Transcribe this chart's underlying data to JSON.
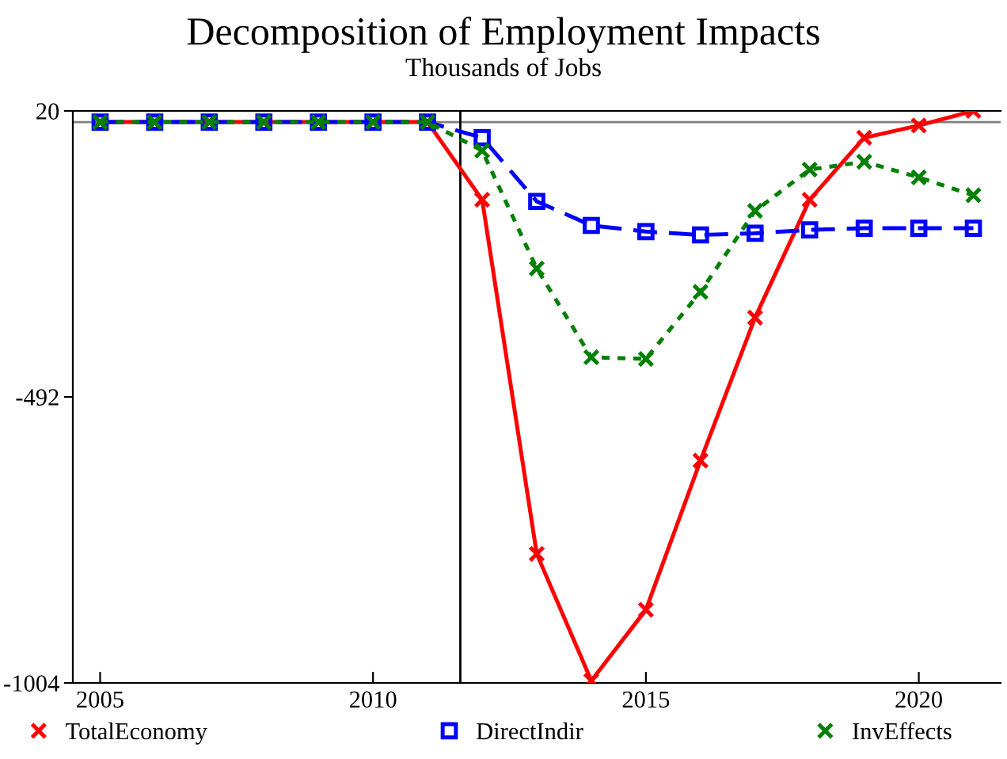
{
  "chart_data": {
    "type": "line",
    "title": "Decomposition of Employment Impacts",
    "subtitle": "Thousands of Jobs",
    "x": [
      2005,
      2006,
      2007,
      2008,
      2009,
      2010,
      2011,
      2012,
      2013,
      2014,
      2015,
      2016,
      2017,
      2018,
      2019,
      2020,
      2021
    ],
    "series": [
      {
        "name": "TotalEconomy",
        "color": "#ff0000",
        "marker": "cross",
        "line_style": "solid",
        "values": [
          0,
          0,
          0,
          0,
          0,
          0,
          0,
          -139,
          -773,
          -1000,
          -873,
          -606,
          -350,
          -139,
          -28,
          -6,
          20
        ]
      },
      {
        "name": "DirectIndir",
        "color": "#0000ff",
        "marker": "square",
        "line_style": "dashed",
        "values": [
          0,
          0,
          0,
          0,
          0,
          0,
          0,
          -28,
          -142,
          -185,
          -196,
          -202,
          -199,
          -193,
          -190,
          -190,
          -190
        ]
      },
      {
        "name": "InvEffects",
        "color": "#008000",
        "marker": "cross",
        "line_style": "dotted",
        "values": [
          0,
          0,
          0,
          0,
          0,
          0,
          0,
          -51,
          -262,
          -421,
          -424,
          -304,
          -159,
          -85,
          -71,
          -99,
          -131
        ]
      }
    ],
    "xlim": [
      2004.5,
      2021.5
    ],
    "xticks": [
      2005,
      2010,
      2015,
      2020
    ],
    "ylim": [
      -1004,
      20
    ],
    "yticks": [
      20,
      -492,
      -1004
    ],
    "ref_lines": [
      {
        "axis": "y",
        "value": 0,
        "color": "#808080"
      },
      {
        "axis": "x",
        "value": 2011.6,
        "color": "#000000"
      }
    ],
    "grid": false,
    "legend": "bottom"
  }
}
